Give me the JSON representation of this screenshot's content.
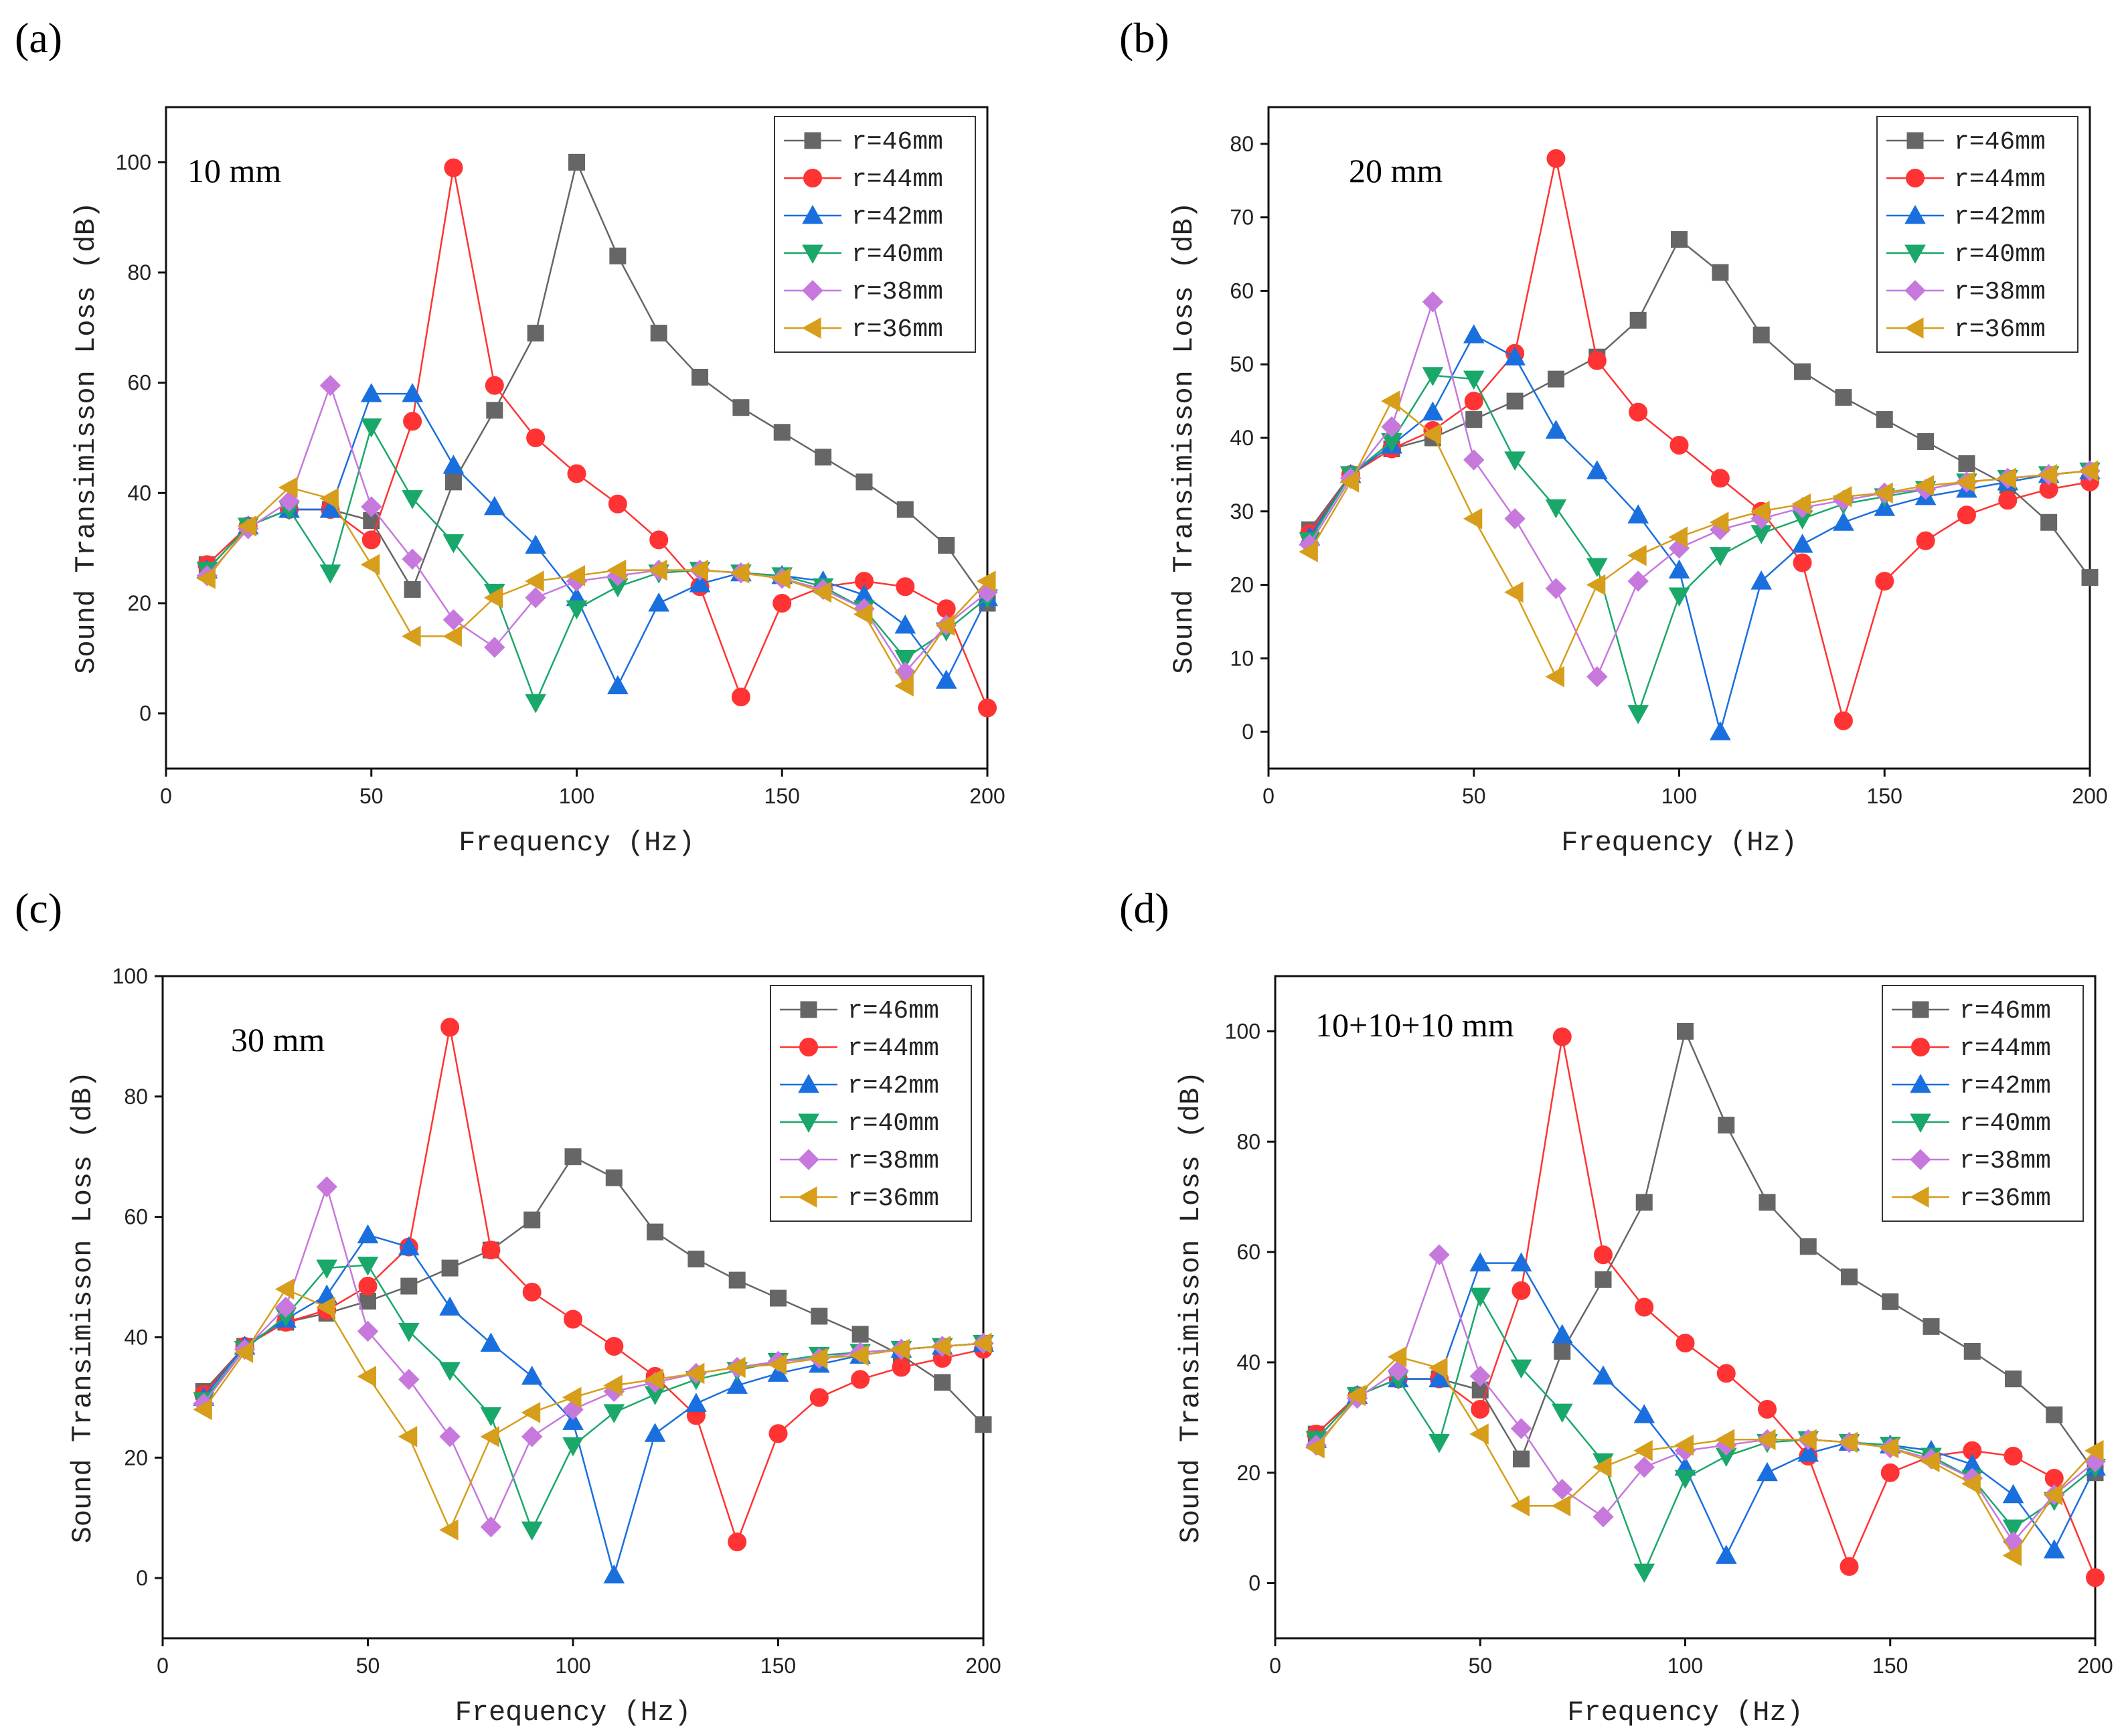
{
  "chart_data": [
    {
      "panel_label": "(a)",
      "annotation": "10 mm",
      "type": "line",
      "xlabel": "Frequency (Hz)",
      "ylabel": "Sound Transimisson Loss (dB)",
      "xlim": [
        0,
        200
      ],
      "ylim": [
        -10,
        110
      ],
      "xticks": [
        0,
        50,
        100,
        150,
        200
      ],
      "yticks": [
        0,
        20,
        40,
        60,
        80,
        100
      ],
      "legend_position": "top-right",
      "x": [
        10,
        20,
        30,
        40,
        50,
        60,
        70,
        80,
        90,
        100,
        110,
        120,
        130,
        140,
        150,
        160,
        170,
        180,
        190,
        200
      ],
      "series": [
        {
          "name": "r=46mm",
          "color": "#666666",
          "marker": "square",
          "values": [
            27,
            34,
            37,
            37,
            35,
            22.5,
            42,
            55,
            69,
            100,
            83,
            69,
            61,
            55.5,
            51,
            46.5,
            42,
            37,
            30.5,
            20
          ]
        },
        {
          "name": "r=44mm",
          "color": "#ff3333",
          "marker": "circle",
          "values": [
            27,
            34,
            37,
            37,
            31.5,
            53,
            99,
            59.5,
            50,
            43.5,
            38,
            31.5,
            23,
            3,
            20,
            23,
            24,
            23,
            19,
            1
          ]
        },
        {
          "name": "r=42mm",
          "color": "#1a6fdf",
          "marker": "triangle-up",
          "values": [
            26,
            34,
            37,
            37,
            58,
            58,
            45,
            37.5,
            30.5,
            21,
            5,
            20,
            23.5,
            25.5,
            25,
            24,
            21.5,
            16,
            6,
            21
          ]
        },
        {
          "name": "r=40mm",
          "color": "#1aa86a",
          "marker": "triangle-down",
          "values": [
            26,
            34,
            37,
            25.5,
            52,
            39,
            31,
            22,
            2,
            19,
            23,
            25.5,
            26,
            25.5,
            25,
            23,
            19,
            10,
            15,
            21
          ]
        },
        {
          "name": "r=38mm",
          "color": "#c678dd",
          "marker": "diamond",
          "values": [
            25,
            33.5,
            38.5,
            59.5,
            37.5,
            28,
            17,
            12,
            21,
            24,
            25,
            26,
            26,
            25.5,
            24.5,
            22.5,
            19,
            7.5,
            16,
            22
          ]
        },
        {
          "name": "r=36mm",
          "color": "#d69e1a",
          "marker": "triangle-left",
          "values": [
            24.5,
            34,
            41,
            39,
            27,
            14,
            14,
            21,
            24,
            25,
            26,
            26,
            26,
            25.5,
            24.5,
            22,
            18,
            5,
            16,
            24
          ]
        }
      ]
    },
    {
      "panel_label": "(b)",
      "annotation": "20 mm",
      "type": "line",
      "xlabel": "Frequency (Hz)",
      "ylabel": "Sound Transimisson Loss (dB)",
      "xlim": [
        0,
        200
      ],
      "ylim": [
        -5,
        85
      ],
      "xticks": [
        0,
        50,
        100,
        150,
        200
      ],
      "yticks": [
        0,
        10,
        20,
        30,
        40,
        50,
        60,
        70,
        80
      ],
      "legend_position": "top-right",
      "x": [
        10,
        20,
        30,
        40,
        50,
        60,
        70,
        80,
        90,
        100,
        110,
        120,
        130,
        140,
        150,
        160,
        170,
        180,
        190,
        200
      ],
      "series": [
        {
          "name": "r=46mm",
          "color": "#666666",
          "marker": "square",
          "values": [
            27.5,
            35,
            38.5,
            40,
            42.5,
            45,
            48,
            51,
            56,
            67,
            62.5,
            54,
            49,
            45.5,
            42.5,
            39.5,
            36.5,
            33.5,
            28.5,
            21
          ]
        },
        {
          "name": "r=44mm",
          "color": "#ff3333",
          "marker": "circle",
          "values": [
            27,
            35,
            38.5,
            41,
            45,
            51.5,
            78,
            50.5,
            43.5,
            39,
            34.5,
            30,
            23,
            1.5,
            20.5,
            26,
            29.5,
            31.5,
            33,
            34
          ]
        },
        {
          "name": "r=42mm",
          "color": "#1a6fdf",
          "marker": "triangle-up",
          "values": [
            26.5,
            35,
            39,
            43.5,
            54,
            51,
            41,
            35.5,
            29.5,
            22,
            0,
            20.5,
            25.5,
            28.5,
            30.5,
            32,
            33,
            34,
            35,
            35.5
          ]
        },
        {
          "name": "r=40mm",
          "color": "#1aa86a",
          "marker": "triangle-down",
          "values": [
            26,
            35,
            39.5,
            48.5,
            48,
            37,
            30.5,
            22.5,
            2.5,
            18.5,
            24,
            27,
            29,
            31,
            32,
            33,
            34,
            34.5,
            35,
            35.5
          ]
        },
        {
          "name": "r=38mm",
          "color": "#c678dd",
          "marker": "diamond",
          "values": [
            25.5,
            34.5,
            41.5,
            58.5,
            37,
            29,
            19.5,
            7.5,
            20.5,
            25,
            27.5,
            29,
            30.5,
            31.5,
            32.5,
            33,
            34,
            34.5,
            35,
            35.5
          ]
        },
        {
          "name": "r=36mm",
          "color": "#d69e1a",
          "marker": "triangle-left",
          "values": [
            24.5,
            34,
            45,
            40.5,
            29,
            19,
            7.5,
            20,
            24,
            26.5,
            28.5,
            30,
            31,
            32,
            32.5,
            33.5,
            34,
            34.5,
            35,
            35.5
          ]
        }
      ]
    },
    {
      "panel_label": "(c)",
      "annotation": "30 mm",
      "type": "line",
      "xlabel": "Frequency (Hz)",
      "ylabel": "Sound Transimisson Loss (dB)",
      "xlim": [
        0,
        200
      ],
      "ylim": [
        -10,
        100
      ],
      "xticks": [
        0,
        50,
        100,
        150,
        200
      ],
      "yticks": [
        0,
        20,
        40,
        60,
        80,
        100
      ],
      "legend_position": "top-right",
      "x": [
        10,
        20,
        30,
        40,
        50,
        60,
        70,
        80,
        90,
        100,
        110,
        120,
        130,
        140,
        150,
        160,
        170,
        180,
        190,
        200
      ],
      "series": [
        {
          "name": "r=46mm",
          "color": "#666666",
          "marker": "square",
          "values": [
            31,
            38.5,
            42.5,
            44,
            46,
            48.5,
            51.5,
            54.5,
            59.5,
            70,
            66.5,
            57.5,
            53,
            49.5,
            46.5,
            43.5,
            40.5,
            37,
            32.5,
            25.5
          ]
        },
        {
          "name": "r=44mm",
          "color": "#ff3333",
          "marker": "circle",
          "values": [
            30.5,
            38.5,
            42.5,
            44.5,
            48.5,
            55,
            91.5,
            54.5,
            47.5,
            43,
            38.5,
            33.5,
            27,
            6,
            24,
            30,
            33,
            35,
            36.5,
            38
          ]
        },
        {
          "name": "r=42mm",
          "color": "#1a6fdf",
          "marker": "triangle-up",
          "values": [
            30,
            38.5,
            43,
            47,
            57,
            55,
            45,
            39,
            33.5,
            26,
            0.5,
            24,
            29,
            32,
            34,
            35.5,
            37,
            38,
            38.5,
            39
          ]
        },
        {
          "name": "r=40mm",
          "color": "#1aa86a",
          "marker": "triangle-down",
          "values": [
            29.5,
            38,
            43.5,
            51.5,
            52,
            41,
            34.5,
            27,
            8,
            22,
            27.5,
            30.5,
            33,
            34.5,
            36,
            37,
            37.5,
            38,
            38.5,
            39
          ]
        },
        {
          "name": "r=38mm",
          "color": "#c678dd",
          "marker": "diamond",
          "values": [
            29,
            38,
            45,
            65,
            41,
            33,
            23.5,
            8.5,
            23.5,
            28,
            31,
            32.5,
            34,
            35,
            36,
            36.5,
            37.5,
            38,
            38.5,
            39
          ]
        },
        {
          "name": "r=36mm",
          "color": "#d69e1a",
          "marker": "triangle-left",
          "values": [
            28,
            37.5,
            48,
            45,
            33.5,
            23.5,
            8,
            23.5,
            27.5,
            30,
            32,
            33,
            34,
            35,
            35.5,
            36.5,
            37,
            38,
            38.5,
            39
          ]
        }
      ]
    },
    {
      "panel_label": "(d)",
      "annotation": "10+10+10 mm",
      "type": "line",
      "xlabel": "Frequency (Hz)",
      "ylabel": "Sound Transimisson Loss (dB)",
      "xlim": [
        0,
        200
      ],
      "ylim": [
        -10,
        110
      ],
      "xticks": [
        0,
        50,
        100,
        150,
        200
      ],
      "yticks": [
        0,
        20,
        40,
        60,
        80,
        100
      ],
      "legend_position": "top-right",
      "x": [
        10,
        20,
        30,
        40,
        50,
        60,
        70,
        80,
        90,
        100,
        110,
        120,
        130,
        140,
        150,
        160,
        170,
        180,
        190,
        200
      ],
      "series": [
        {
          "name": "r=46mm",
          "color": "#666666",
          "marker": "square",
          "values": [
            27,
            34,
            37,
            37,
            35,
            22.5,
            42,
            55,
            69,
            100,
            83,
            69,
            61,
            55.5,
            51,
            46.5,
            42,
            37,
            30.5,
            20
          ]
        },
        {
          "name": "r=44mm",
          "color": "#ff3333",
          "marker": "circle",
          "values": [
            27,
            34,
            37,
            37,
            31.5,
            53,
            99,
            59.5,
            50,
            43.5,
            38,
            31.5,
            23,
            3,
            20,
            23,
            24,
            23,
            19,
            1
          ]
        },
        {
          "name": "r=42mm",
          "color": "#1a6fdf",
          "marker": "triangle-up",
          "values": [
            26,
            34,
            37,
            37,
            58,
            58,
            45,
            37.5,
            30.5,
            21,
            5,
            20,
            23.5,
            25.5,
            25,
            24,
            21.5,
            16,
            6,
            21
          ]
        },
        {
          "name": "r=40mm",
          "color": "#1aa86a",
          "marker": "triangle-down",
          "values": [
            26,
            34,
            37,
            25.5,
            52,
            39,
            31,
            22,
            2,
            19,
            23,
            25.5,
            26,
            25.5,
            25,
            23,
            19,
            10,
            15,
            21
          ]
        },
        {
          "name": "r=38mm",
          "color": "#c678dd",
          "marker": "diamond",
          "values": [
            25,
            33.5,
            38.5,
            59.5,
            37.5,
            28,
            17,
            12,
            21,
            24,
            25,
            26,
            26,
            25.5,
            24.5,
            22.5,
            19,
            7.5,
            16,
            22
          ]
        },
        {
          "name": "r=36mm",
          "color": "#d69e1a",
          "marker": "triangle-left",
          "values": [
            24.5,
            34,
            41,
            39,
            27,
            14,
            14,
            21,
            24,
            25,
            26,
            26,
            26,
            25.5,
            24.5,
            22,
            18,
            5,
            16,
            24
          ]
        }
      ]
    }
  ]
}
